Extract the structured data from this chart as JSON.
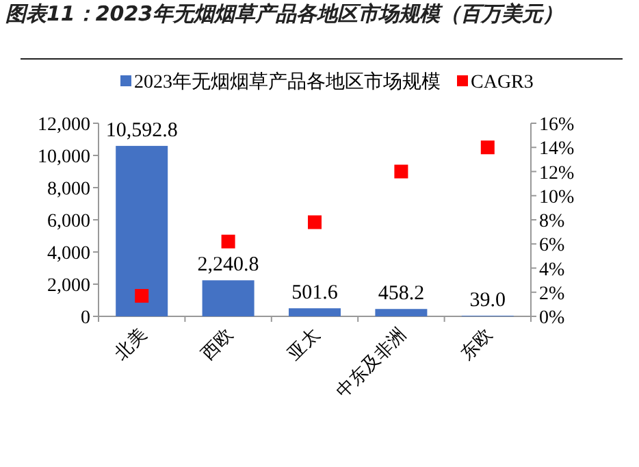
{
  "chart_data": {
    "type": "bar",
    "title": "图表11：2023年无烟烟草产品各地区市场规模（百万美元）",
    "categories": [
      "北美",
      "西欧",
      "亚太",
      "中东及非洲",
      "东欧"
    ],
    "series": [
      {
        "name": "2023年无烟烟草产品各地区市场规模",
        "type": "bar",
        "color": "#4472c4",
        "values": [
          10592.8,
          2240.8,
          501.6,
          458.2,
          39.0
        ],
        "value_labels": [
          "10,592.8",
          "2,240.8",
          "501.6",
          "458.2",
          "39.0"
        ]
      },
      {
        "name": "CAGR3",
        "type": "scatter",
        "axis": "y2",
        "color": "#ff0000",
        "values": [
          1.7,
          6.2,
          7.8,
          12.0,
          14.0
        ]
      }
    ],
    "marker": "square",
    "ylim": [
      0,
      12000
    ],
    "yticks": [
      0,
      {
        "value": 2000,
        "label": "2,000"
      },
      {
        "value": 4000,
        "label": "4,000"
      },
      {
        "value": 6000,
        "label": "6,000"
      },
      {
        "value": 8000,
        "label": "8,000"
      },
      {
        "value": 10000,
        "label": "10,000"
      },
      {
        "value": 12000,
        "label": "12,000"
      }
    ],
    "y2lim": [
      0,
      16
    ],
    "y2ticks": [
      {
        "value": 0,
        "label": "0%"
      },
      {
        "value": 2,
        "label": "2%"
      },
      {
        "value": 4,
        "label": "4%"
      },
      {
        "value": 6,
        "label": "6%"
      },
      {
        "value": 8,
        "label": "8%"
      },
      {
        "value": 10,
        "label": "10%"
      },
      {
        "value": 12,
        "label": "12%"
      },
      {
        "value": 14,
        "label": "14%"
      },
      {
        "value": 16,
        "label": "16%"
      }
    ],
    "legend": "top"
  }
}
